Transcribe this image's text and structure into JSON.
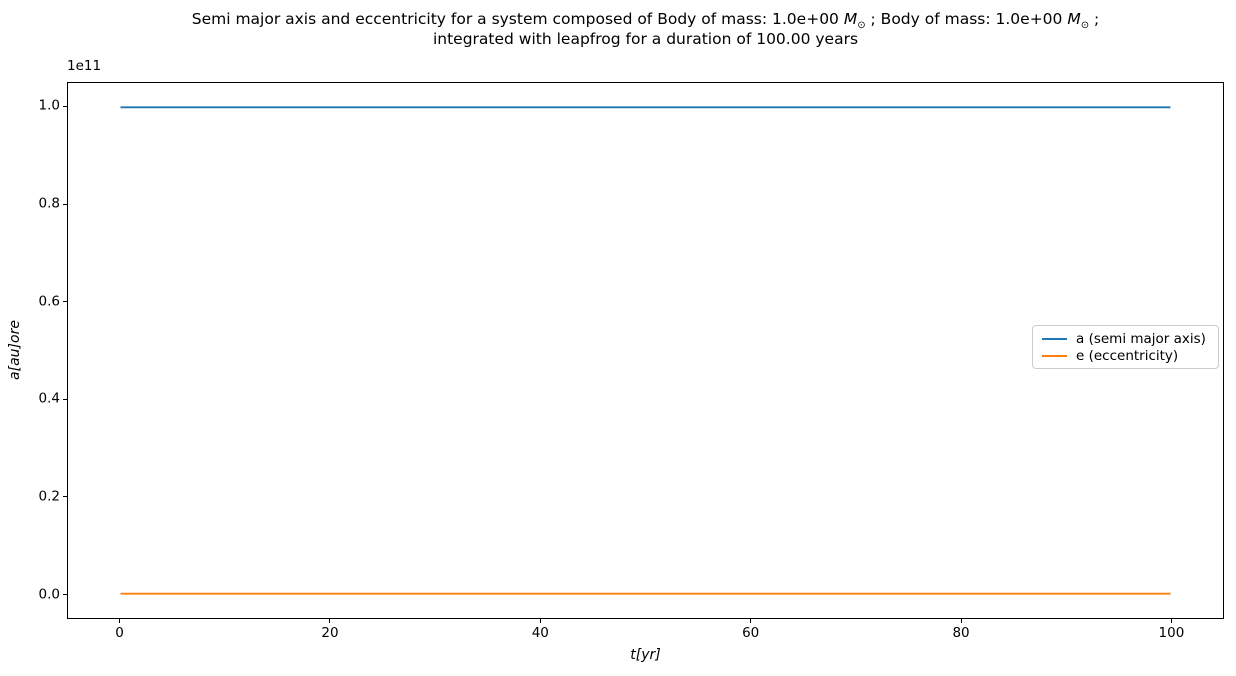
{
  "title": {
    "line1_pre": "Semi major axis and eccentricity for a system composed of Body of mass: 1.0e+00 ",
    "mass_symbol": "M",
    "sun_symbol": "⊙",
    "line1_mid": " ; Body of mass: 1.0e+00 ",
    "line1_end": " ;",
    "line2": "integrated with leapfrog for a duration of 100.00 years"
  },
  "chart_data": {
    "type": "line",
    "title": "Semi major axis and eccentricity for a system composed of Body of mass: 1.0e+00 M⊙ ; Body of mass: 1.0e+00 M⊙ ; integrated with leapfrog for a duration of 100.00 years",
    "xlabel": "t[yr]",
    "ylabel": "a[au]ore",
    "y_offset_text": "1e11",
    "xlim": [
      -5,
      105
    ],
    "ylim": [
      -5000000000,
      105000000000
    ],
    "x_ticks": [
      0,
      20,
      40,
      60,
      80,
      100
    ],
    "x_tick_labels": [
      "0",
      "20",
      "40",
      "60",
      "80",
      "100"
    ],
    "y_ticks": [
      0.0,
      0.2,
      0.4,
      0.6,
      0.8,
      1.0
    ],
    "y_tick_labels": [
      "0.0",
      "0.2",
      "0.4",
      "0.6",
      "0.8",
      "1.0"
    ],
    "y_tick_scale": 100000000000,
    "grid": false,
    "legend_position": "center right",
    "series": [
      {
        "name": "a (semi major axis)",
        "color": "#1f77b4",
        "x": [
          0,
          100
        ],
        "values": [
          100000000000,
          100000000000
        ],
        "note": "constant line at 1.0e11 across full time range"
      },
      {
        "name": "e (eccentricity)",
        "color": "#ff7f0e",
        "x": [
          0,
          100
        ],
        "values": [
          0,
          0
        ],
        "note": "constant line at 0 across full time range"
      }
    ]
  }
}
